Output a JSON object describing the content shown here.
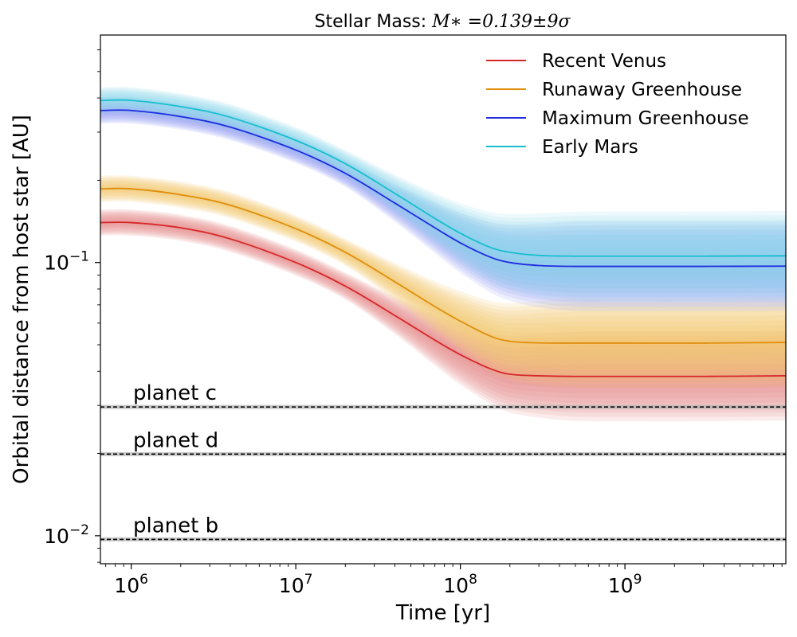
{
  "chart_data": {
    "type": "line",
    "title_prefix": "Stellar Mass: ",
    "title_math": "M∗ =0.139±9σ",
    "xlabel": "Time [yr]",
    "ylabel": "Orbital distance from host star [AU]",
    "xscale": "log",
    "yscale": "log",
    "xlim": [
      650000,
      9500000000
    ],
    "ylim": [
      0.0079,
      0.68
    ],
    "x_ticks": [
      {
        "value": 1000000,
        "base": "10",
        "exp": "6"
      },
      {
        "value": 10000000,
        "base": "10",
        "exp": "7"
      },
      {
        "value": 100000000,
        "base": "10",
        "exp": "8"
      },
      {
        "value": 1000000000,
        "base": "10",
        "exp": "9"
      }
    ],
    "y_ticks": [
      {
        "value": 0.01,
        "base": "10",
        "exp": "−2"
      },
      {
        "value": 0.1,
        "base": "10",
        "exp": "−1"
      }
    ],
    "legend_position": "top-right",
    "x": [
      650000,
      1000000,
      2000000,
      4000000,
      10000000,
      20000000,
      40000000,
      70000000,
      100000000,
      150000000,
      200000000,
      300000000,
      500000000,
      1000000000,
      3000000000,
      9500000000
    ],
    "series": [
      {
        "name": "Recent Venus",
        "color": "#d62728",
        "band_color": "#e8868a",
        "values": [
          0.14,
          0.14,
          0.134,
          0.122,
          0.1,
          0.082,
          0.064,
          0.052,
          0.046,
          0.041,
          0.039,
          0.0385,
          0.0383,
          0.0383,
          0.0383,
          0.0385
        ]
      },
      {
        "name": "Runaway Greenhouse",
        "color": "#e08e0b",
        "band_color": "#f2c56b",
        "values": [
          0.186,
          0.186,
          0.177,
          0.162,
          0.133,
          0.109,
          0.085,
          0.069,
          0.061,
          0.054,
          0.0515,
          0.0508,
          0.0507,
          0.0507,
          0.0507,
          0.051
        ]
      },
      {
        "name": "Maximum Greenhouse",
        "color": "#1f2be0",
        "band_color": "#8f9cf5",
        "values": [
          0.36,
          0.36,
          0.342,
          0.313,
          0.258,
          0.212,
          0.165,
          0.134,
          0.118,
          0.105,
          0.1,
          0.0975,
          0.0968,
          0.0968,
          0.0968,
          0.097
        ]
      },
      {
        "name": "Early Mars",
        "color": "#17becf",
        "band_color": "#8fd9ea",
        "values": [
          0.392,
          0.392,
          0.372,
          0.34,
          0.28,
          0.23,
          0.179,
          0.145,
          0.128,
          0.114,
          0.109,
          0.1062,
          0.1055,
          0.1055,
          0.1055,
          0.1058
        ]
      }
    ],
    "planets": [
      {
        "label": "planet c",
        "distance": 0.0296
      },
      {
        "label": "planet d",
        "distance": 0.0199
      },
      {
        "label": "planet b",
        "distance": 0.0097
      }
    ]
  }
}
